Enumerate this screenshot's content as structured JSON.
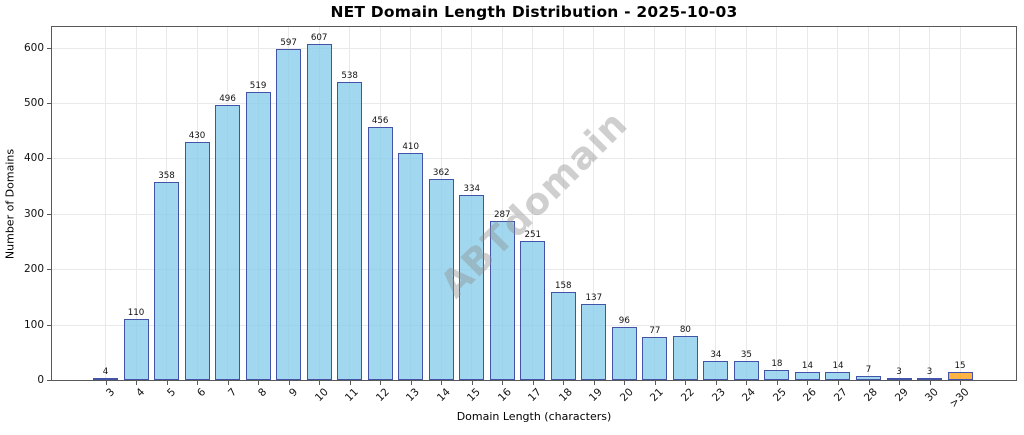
{
  "chart_data": {
    "type": "bar",
    "title": "NET Domain Length Distribution - 2025-10-03",
    "xlabel": "Domain Length (characters)",
    "ylabel": "Number of Domains",
    "categories": [
      "3",
      "4",
      "5",
      "6",
      "7",
      "8",
      "9",
      "10",
      "11",
      "12",
      "13",
      "14",
      "15",
      "16",
      "17",
      "18",
      "19",
      "20",
      "21",
      "22",
      "23",
      "24",
      "25",
      "26",
      "27",
      "28",
      "29",
      "30",
      ">30"
    ],
    "values": [
      4,
      110,
      358,
      430,
      496,
      519,
      597,
      607,
      538,
      456,
      410,
      362,
      334,
      287,
      251,
      158,
      137,
      96,
      77,
      80,
      34,
      35,
      18,
      14,
      14,
      7,
      3,
      3,
      15
    ],
    "highlight_index": 28,
    "yticks": [
      0,
      100,
      200,
      300,
      400,
      500,
      600
    ],
    "ylim": [
      0,
      637
    ],
    "grid": true,
    "legend": "none",
    "watermark": "ABTdomain",
    "colors": {
      "bar_fill": "rgba(136,205,235,0.78)",
      "bar_fill_highlight": "rgba(250,164,27,0.82)",
      "bar_edge": "#4353A8",
      "grid": "#e9e9e9",
      "spine": "#595959",
      "watermark": "#8f8f8f",
      "text": "#111111"
    }
  }
}
